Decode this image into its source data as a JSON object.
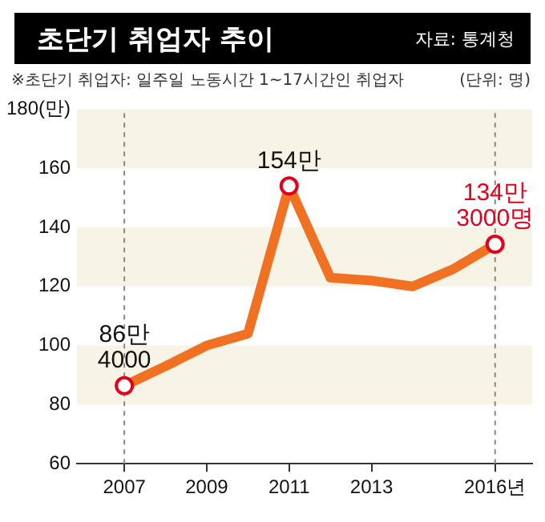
{
  "chart_data": {
    "type": "line",
    "title": "초단기 취업자 추이",
    "subtitle": "※초단기 취업자: 일주일 노동시간 1~17시간인 취업자",
    "annotations": [
      "자료: 통계청",
      "(단위: 명)",
      {
        "text": "86만\n4000",
        "x": 2007,
        "y": 86.4
      },
      {
        "text": "154만",
        "x": 2011,
        "y": 154
      },
      {
        "text": "134만\n3000명",
        "x": 2016,
        "y": 134.3
      }
    ],
    "x": [
      2007,
      2008,
      2009,
      2010,
      2011,
      2012,
      2013,
      2014,
      2015,
      2016
    ],
    "series": [
      {
        "color": "#f07122",
        "marker": "none",
        "values": [
          86.4,
          93,
          100,
          104,
          154,
          123,
          122,
          120,
          126,
          134.3
        ]
      },
      {
        "type": "scatter",
        "color": "#e3001b",
        "marker": "circle",
        "x": [
          2007,
          2011,
          2016
        ],
        "values": [
          86.4,
          154,
          134.3
        ]
      }
    ],
    "xlim": [
      2005.85,
      2016.9
    ],
    "xticks": [
      2007,
      2009,
      2011,
      2013,
      {
        "value": 2016,
        "label": "2016년"
      }
    ],
    "ylim": [
      60,
      180
    ],
    "yticks": [
      60,
      80,
      100,
      120,
      140,
      160,
      {
        "value": 180,
        "label": "180(만)"
      }
    ],
    "grid": false,
    "bands": [
      {
        "axis": "y",
        "from": 80,
        "to": 100,
        "color": "#f7f4e6"
      },
      {
        "axis": "y",
        "from": 120,
        "to": 140,
        "color": "#f7f4e6"
      },
      {
        "axis": "y",
        "from": 160,
        "to": 180,
        "color": "#f7f4e6"
      }
    ],
    "ref_lines": [
      {
        "axis": "x",
        "value": 2007,
        "line_style": "dashed",
        "color": "#888888"
      },
      {
        "axis": "x",
        "value": 2016,
        "line_style": "dashed",
        "color": "#888888"
      }
    ]
  }
}
